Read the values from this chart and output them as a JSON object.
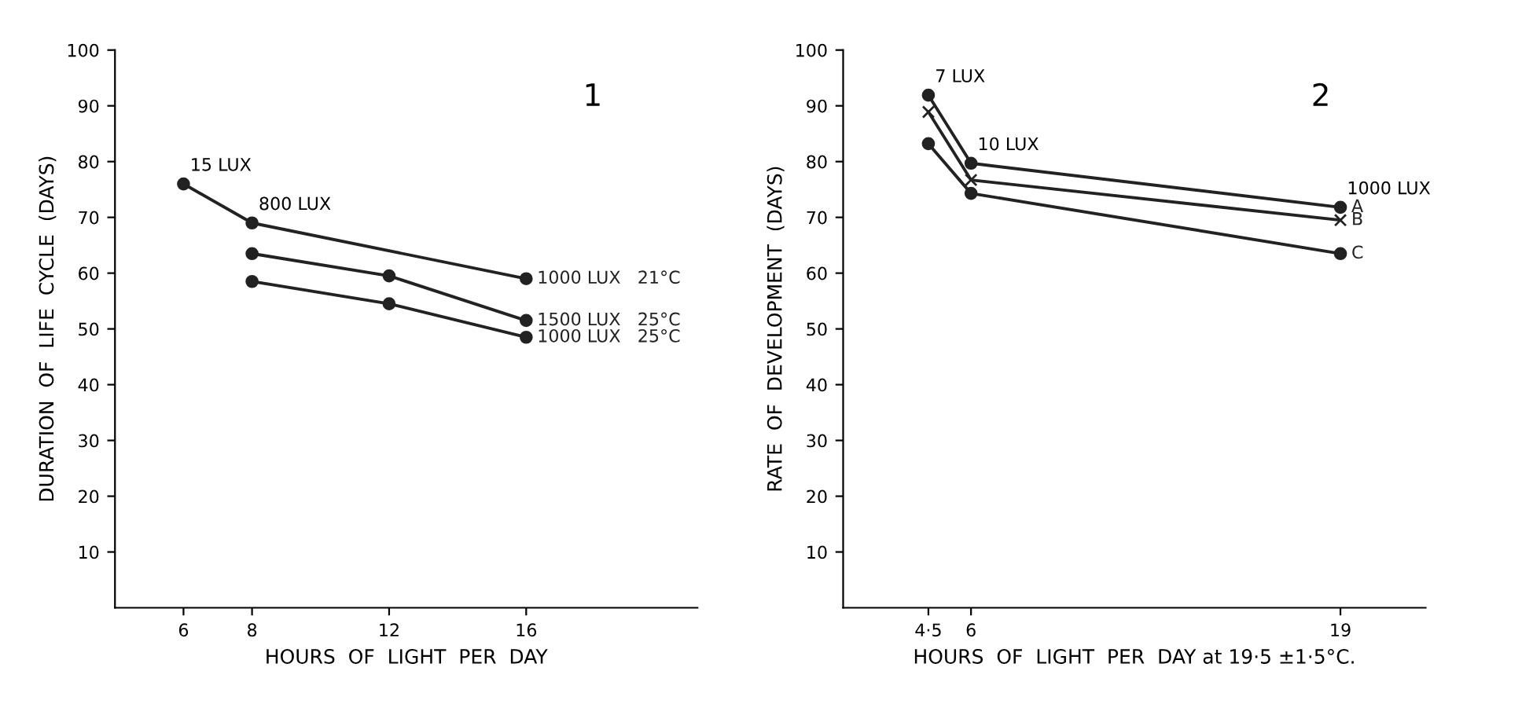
{
  "chart_data": [
    {
      "type": "line",
      "xlabel": "HOURS  OF  LIGHT  PER  DAY",
      "ylabel": "DURATION  OF  LIFE  CYCLE  (DAYS)",
      "xlim": [
        4,
        21
      ],
      "xticks": [
        6,
        8,
        12,
        16
      ],
      "ylim": [
        0,
        100
      ],
      "yticks": [
        10,
        20,
        30,
        40,
        50,
        60,
        70,
        80,
        90,
        100
      ],
      "grid": false,
      "legend": false,
      "marker": "circle",
      "line_style": "solid",
      "series": [
        {
          "name": "1000 LUX   21°C",
          "color": "#222222",
          "x": [
            6,
            8,
            16
          ],
          "values": [
            76,
            69,
            59
          ]
        },
        {
          "name": "1500 LUX   25°C",
          "color": "#222222",
          "x": [
            8,
            12,
            16
          ],
          "values": [
            63.5,
            59.5,
            51.5
          ]
        },
        {
          "name": "1000 LUX   25°C",
          "color": "#222222",
          "x": [
            8,
            12,
            16
          ],
          "values": [
            58.5,
            54.5,
            48.5
          ]
        }
      ],
      "annotations": [
        {
          "text": "15 LUX",
          "x": 6,
          "y": 76
        },
        {
          "text": "800 LUX",
          "x": 8,
          "y": 69
        },
        "1"
      ]
    },
    {
      "type": "line",
      "xlabel": "HOURS  OF  LIGHT  PER  DAY at 19·5 ±1·5°C.",
      "ylabel": "RATE  OF  DEVELOPMENT  (DAYS)",
      "xlim": [
        1.5,
        22
      ],
      "xticks": [
        {
          "value": 4.5,
          "label": "4·5"
        },
        6,
        19
      ],
      "ylim": [
        0,
        100
      ],
      "yticks": [
        10,
        20,
        30,
        40,
        50,
        60,
        70,
        80,
        90,
        100
      ],
      "grid": false,
      "legend": false,
      "marker": "circle",
      "line_style": "solid",
      "series": [
        {
          "name": "A",
          "color": "#222222",
          "x": [
            4.5,
            6,
            19
          ],
          "values": [
            91.9,
            79.7,
            71.8
          ]
        },
        {
          "name": "B",
          "color": "#222222",
          "marker": "cross",
          "x": [
            4.5,
            6,
            19
          ],
          "values": [
            88.9,
            76.7,
            69.5
          ]
        },
        {
          "name": "C",
          "color": "#222222",
          "x": [
            4.5,
            6,
            19
          ],
          "values": [
            83.2,
            74.3,
            63.5
          ]
        }
      ],
      "annotations": [
        {
          "text": "7 LUX",
          "x": 4.5,
          "y": 91.9
        },
        {
          "text": "10 LUX",
          "x": 6,
          "y": 79.7
        },
        {
          "text": "1000 LUX",
          "x": 19,
          "y": 71.8
        },
        "2"
      ]
    }
  ]
}
